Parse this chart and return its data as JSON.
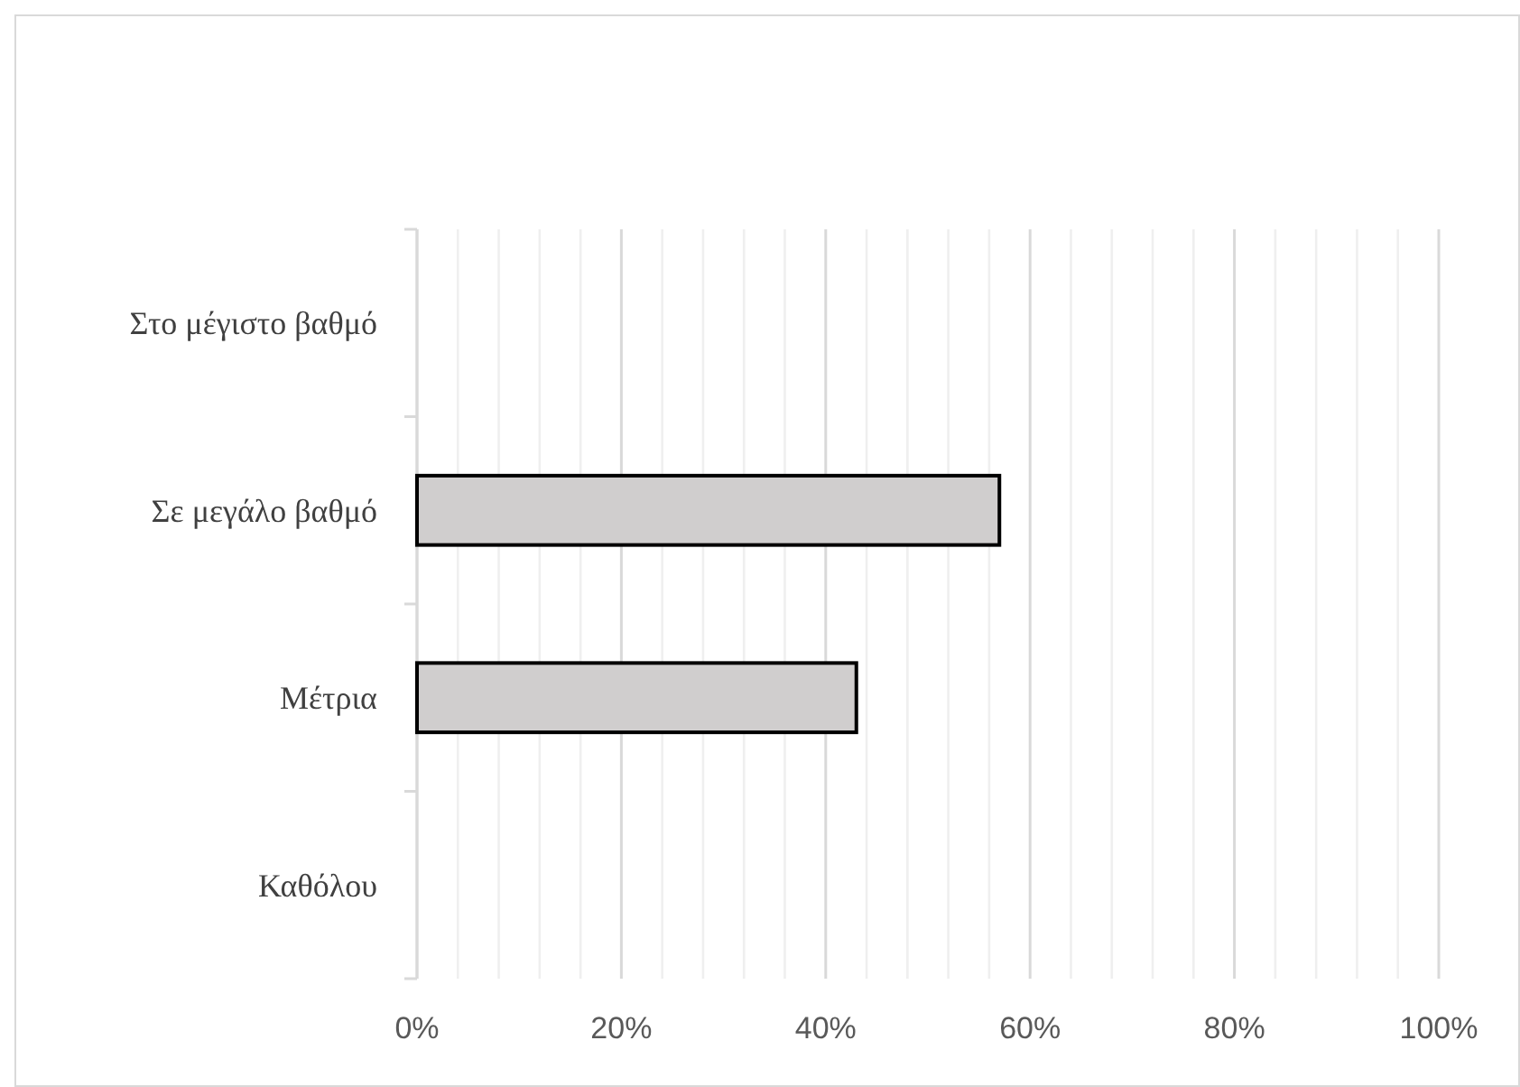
{
  "chart_data": {
    "type": "bar",
    "orientation": "horizontal",
    "categories": [
      "Στο μέγιστο βαθμό",
      "Σε μεγάλο βαθμό",
      "Μέτρια",
      "Καθόλου"
    ],
    "values": [
      0,
      57,
      43,
      0
    ],
    "color": "#d0cece",
    "xlim": [
      0,
      100
    ],
    "xticks": [
      {
        "value": 0,
        "label": "0%"
      },
      {
        "value": 4,
        "label": null
      },
      {
        "value": 8,
        "label": null
      },
      {
        "value": 12,
        "label": null
      },
      {
        "value": 16,
        "label": null
      },
      {
        "value": 20,
        "label": "20%"
      },
      {
        "value": 24,
        "label": null
      },
      {
        "value": 28,
        "label": null
      },
      {
        "value": 32,
        "label": null
      },
      {
        "value": 36,
        "label": null
      },
      {
        "value": 40,
        "label": "40%"
      },
      {
        "value": 44,
        "label": null
      },
      {
        "value": 48,
        "label": null
      },
      {
        "value": 52,
        "label": null
      },
      {
        "value": 56,
        "label": null
      },
      {
        "value": 60,
        "label": "60%"
      },
      {
        "value": 64,
        "label": null
      },
      {
        "value": 68,
        "label": null
      },
      {
        "value": 72,
        "label": null
      },
      {
        "value": 76,
        "label": null
      },
      {
        "value": 80,
        "label": "80%"
      },
      {
        "value": 84,
        "label": null
      },
      {
        "value": 88,
        "label": null
      },
      {
        "value": 92,
        "label": null
      },
      {
        "value": 96,
        "label": null
      },
      {
        "value": 100,
        "label": "100%"
      }
    ],
    "grid": true
  }
}
